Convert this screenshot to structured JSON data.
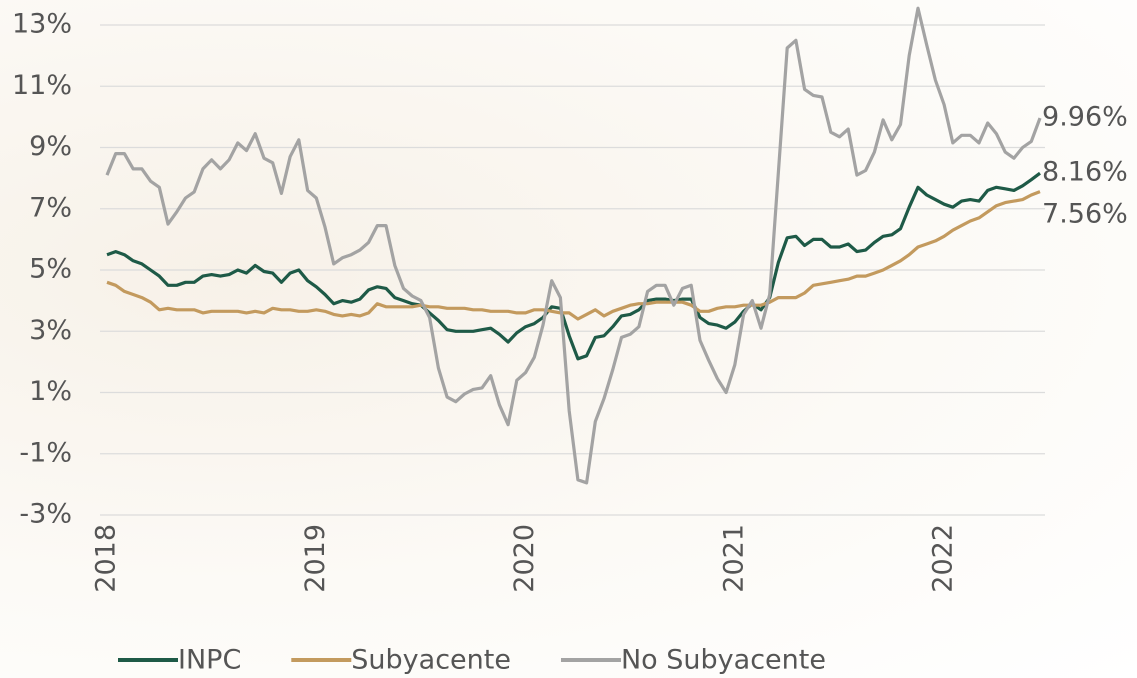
{
  "chart_data": {
    "type": "line",
    "categories": [
      "2018",
      null,
      null,
      null,
      null,
      null,
      null,
      null,
      null,
      null,
      null,
      null,
      null,
      null,
      null,
      null,
      null,
      null,
      null,
      null,
      null,
      null,
      null,
      null,
      "2019",
      null,
      null,
      null,
      null,
      null,
      null,
      null,
      null,
      null,
      null,
      null,
      null,
      null,
      null,
      null,
      null,
      null,
      null,
      null,
      null,
      null,
      null,
      null,
      "2020",
      null,
      null,
      null,
      null,
      null,
      null,
      null,
      null,
      null,
      null,
      null,
      null,
      null,
      null,
      null,
      null,
      null,
      null,
      null,
      null,
      null,
      null,
      null,
      "2021",
      null,
      null,
      null,
      null,
      null,
      null,
      null,
      null,
      null,
      null,
      null,
      null,
      null,
      null,
      null,
      null,
      null,
      null,
      null,
      null,
      null,
      null,
      null,
      "2022",
      null,
      null,
      null,
      null,
      null,
      null,
      null,
      null,
      null,
      null,
      null
    ],
    "series": [
      {
        "name": "INPC",
        "color": "#1e5a47",
        "end_label": "8.16%",
        "values": [
          5.5,
          5.6,
          5.5,
          5.3,
          5.2,
          5.0,
          4.8,
          4.5,
          4.5,
          4.6,
          4.6,
          4.8,
          4.85,
          4.8,
          4.85,
          5.0,
          4.9,
          5.15,
          4.95,
          4.9,
          4.6,
          4.9,
          5.0,
          4.65,
          4.45,
          4.2,
          3.9,
          4.0,
          3.95,
          4.05,
          4.35,
          4.45,
          4.4,
          4.1,
          4.0,
          3.9,
          3.85,
          3.6,
          3.35,
          3.05,
          3.0,
          3.0,
          3.0,
          3.05,
          3.1,
          2.9,
          2.65,
          2.95,
          3.15,
          3.25,
          3.45,
          3.8,
          3.75,
          2.85,
          2.1,
          2.2,
          2.8,
          2.85,
          3.15,
          3.5,
          3.55,
          3.7,
          4.0,
          4.05,
          4.05,
          4.0,
          4.05,
          4.05,
          3.45,
          3.25,
          3.2,
          3.1,
          3.3,
          3.65,
          3.9,
          3.7,
          4.1,
          5.25,
          6.05,
          6.1,
          5.8,
          6.0,
          6.0,
          5.75,
          5.75,
          5.85,
          5.6,
          5.65,
          5.9,
          6.1,
          6.15,
          6.35,
          7.05,
          7.7,
          7.45,
          7.3,
          7.15,
          7.05,
          7.25,
          7.3,
          7.25,
          7.6,
          7.7,
          7.65,
          7.6,
          7.75,
          7.95,
          8.16
        ]
      },
      {
        "name": "Subyacente",
        "color": "#c39a5e",
        "end_label": "7.56%",
        "values": [
          4.6,
          4.5,
          4.3,
          4.2,
          4.1,
          3.95,
          3.7,
          3.75,
          3.7,
          3.7,
          3.7,
          3.6,
          3.65,
          3.65,
          3.65,
          3.65,
          3.6,
          3.65,
          3.6,
          3.75,
          3.7,
          3.7,
          3.65,
          3.65,
          3.7,
          3.65,
          3.55,
          3.5,
          3.55,
          3.5,
          3.6,
          3.9,
          3.8,
          3.8,
          3.8,
          3.8,
          3.85,
          3.8,
          3.8,
          3.75,
          3.75,
          3.75,
          3.7,
          3.7,
          3.65,
          3.65,
          3.65,
          3.6,
          3.6,
          3.7,
          3.7,
          3.65,
          3.6,
          3.6,
          3.4,
          3.55,
          3.7,
          3.5,
          3.65,
          3.75,
          3.85,
          3.9,
          3.9,
          3.95,
          3.95,
          3.95,
          3.95,
          3.85,
          3.65,
          3.65,
          3.75,
          3.8,
          3.8,
          3.85,
          3.85,
          3.85,
          3.95,
          4.1,
          4.1,
          4.1,
          4.25,
          4.5,
          4.55,
          4.6,
          4.65,
          4.7,
          4.8,
          4.8,
          4.9,
          5.0,
          5.15,
          5.3,
          5.5,
          5.75,
          5.85,
          5.95,
          6.1,
          6.3,
          6.45,
          6.6,
          6.7,
          6.9,
          7.1,
          7.2,
          7.25,
          7.3,
          7.45,
          7.56
        ]
      },
      {
        "name": "No Subyacente",
        "color": "#a3a3a3",
        "end_label": "9.96%",
        "values": [
          8.1,
          8.8,
          8.8,
          8.3,
          8.3,
          7.9,
          7.7,
          6.5,
          6.9,
          7.35,
          7.55,
          8.3,
          8.6,
          8.3,
          8.6,
          9.15,
          8.9,
          9.45,
          8.65,
          8.5,
          7.5,
          8.7,
          9.25,
          7.6,
          7.35,
          6.4,
          5.2,
          5.4,
          5.5,
          5.65,
          5.9,
          6.45,
          6.45,
          5.15,
          4.4,
          4.15,
          4.0,
          3.45,
          1.8,
          0.85,
          0.7,
          0.95,
          1.1,
          1.15,
          1.55,
          0.6,
          -0.05,
          1.4,
          1.65,
          2.15,
          3.2,
          4.65,
          4.1,
          0.4,
          -1.85,
          -1.95,
          0.05,
          0.8,
          1.75,
          2.8,
          2.9,
          3.15,
          4.3,
          4.5,
          4.5,
          3.85,
          4.4,
          4.5,
          2.7,
          2.05,
          1.45,
          1.0,
          1.9,
          3.55,
          4.0,
          3.1,
          4.2,
          8.2,
          12.25,
          12.5,
          10.9,
          10.7,
          10.65,
          9.5,
          9.35,
          9.6,
          8.1,
          8.25,
          8.85,
          9.9,
          9.25,
          9.75,
          12.0,
          13.55,
          12.35,
          11.2,
          10.4,
          9.15,
          9.4,
          9.4,
          9.15,
          9.8,
          9.45,
          8.85,
          8.65,
          9.0,
          9.2,
          9.96
        ]
      }
    ],
    "ylim": [
      -3,
      13
    ],
    "yticks": [
      {
        "value": -3,
        "label": "-3%"
      },
      {
        "value": -1,
        "label": "-1%"
      },
      {
        "value": 1,
        "label": "1%"
      },
      {
        "value": 3,
        "label": "3%"
      },
      {
        "value": 5,
        "label": "5%"
      },
      {
        "value": 7,
        "label": "7%"
      },
      {
        "value": 9,
        "label": "9%"
      },
      {
        "value": 11,
        "label": "11%"
      },
      {
        "value": 13,
        "label": "13%"
      }
    ],
    "grid": true,
    "legend": "bottom"
  }
}
